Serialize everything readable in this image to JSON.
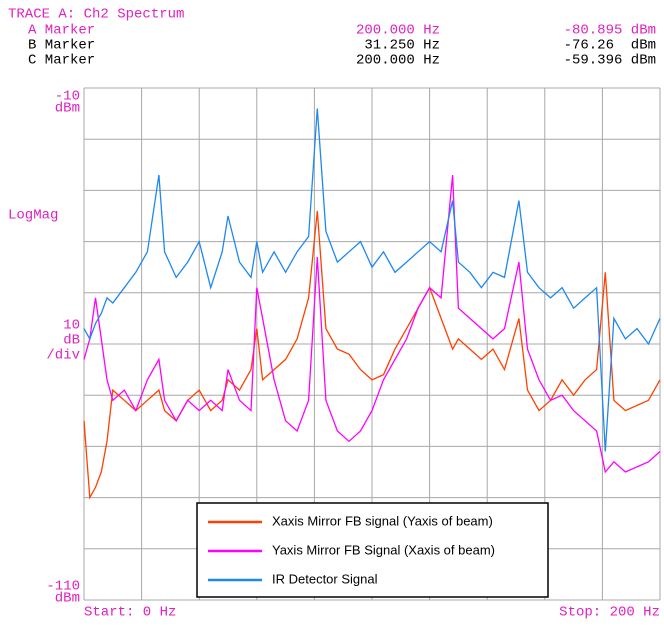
{
  "chart_data": {
    "type": "line",
    "title": "TRACE A: Ch2 Spectrum",
    "markers": [
      {
        "name": "A Marker",
        "x": "200.000 Hz",
        "y": "-80.895 dBm",
        "color": "#e020c0"
      },
      {
        "name": "B Marker",
        "x": "31.250 Hz",
        "y": "-76.26  dBm",
        "color": "#000000"
      },
      {
        "name": "C Marker",
        "x": "200.000 Hz",
        "y": "-59.396 dBm",
        "color": "#000000"
      }
    ],
    "label_color": "#e020c0",
    "scale_label": "LogMag",
    "scale_per_div": 10,
    "scale_unit": "dB",
    "scale_suffix": "/div",
    "yunit": "dBm",
    "ylim": [
      -110,
      -10
    ],
    "yticks": [
      -10,
      -110
    ],
    "xlim": [
      0,
      200
    ],
    "x_divisions": 10,
    "x_start_label": "Start: 0 Hz",
    "x_stop_label": "Stop: 200 Hz",
    "grid": true,
    "legend": "bottom",
    "x": [
      0,
      2,
      4,
      6,
      8,
      10,
      14,
      18,
      22,
      26,
      28,
      32,
      36,
      40,
      44,
      48,
      50,
      54,
      58,
      60,
      62,
      66,
      70,
      74,
      78,
      81,
      84,
      88,
      92,
      96,
      100,
      104,
      108,
      112,
      116,
      120,
      124,
      128,
      130,
      134,
      138,
      142,
      146,
      151,
      154,
      158,
      162,
      166,
      170,
      174,
      178,
      181,
      184,
      188,
      192,
      196,
      200
    ],
    "series": [
      {
        "name": "Xaxis Mirror FB signal (Yaxis of beam)",
        "color": "#ff4000",
        "values": [
          -75,
          -90,
          -88,
          -85,
          -79,
          -69,
          -71,
          -73,
          -71,
          -69,
          -73,
          -75,
          -71,
          -69,
          -73,
          -71,
          -67,
          -69,
          -65,
          -57,
          -67,
          -65,
          -63,
          -59,
          -51,
          -34,
          -57,
          -61,
          -62,
          -65,
          -67,
          -66,
          -61,
          -57,
          -53,
          -49,
          -55,
          -61,
          -59,
          -61,
          -63,
          -61,
          -65,
          -55,
          -69,
          -73,
          -71,
          -67,
          -70,
          -67,
          -65,
          -46,
          -71,
          -73,
          -72,
          -71,
          -67
        ]
      },
      {
        "name": "Yaxis Mirror FB Signal (Xaxis of beam)",
        "color": "#ff00ff",
        "values": [
          -63,
          -59,
          -51,
          -59,
          -67,
          -71,
          -69,
          -73,
          -67,
          -63,
          -71,
          -75,
          -71,
          -73,
          -71,
          -73,
          -65,
          -71,
          -73,
          -49,
          -55,
          -67,
          -75,
          -77,
          -71,
          -43,
          -71,
          -77,
          -79,
          -77,
          -73,
          -67,
          -63,
          -59,
          -53,
          -49,
          -51,
          -27,
          -53,
          -55,
          -57,
          -59,
          -57,
          -44,
          -61,
          -67,
          -71,
          -70,
          -73,
          -75,
          -77,
          -85,
          -83,
          -85,
          -84,
          -83,
          -81
        ]
      },
      {
        "name": "IR Detector Signal",
        "color": "#1e88f0",
        "values": [
          -57,
          -59,
          -56,
          -54,
          -51,
          -52,
          -49,
          -46,
          -42,
          -27,
          -42,
          -47,
          -44,
          -40,
          -49,
          -42,
          -35,
          -44,
          -47,
          -40,
          -46,
          -42,
          -46,
          -42,
          -39,
          -14,
          -38,
          -44,
          -42,
          -40,
          -45,
          -42,
          -46,
          -44,
          -42,
          -40,
          -42,
          -32,
          -44,
          -46,
          -49,
          -46,
          -47,
          -32,
          -46,
          -49,
          -51,
          -49,
          -53,
          -51,
          -49,
          -81,
          -55,
          -59,
          -57,
          -60,
          -55
        ]
      }
    ]
  }
}
